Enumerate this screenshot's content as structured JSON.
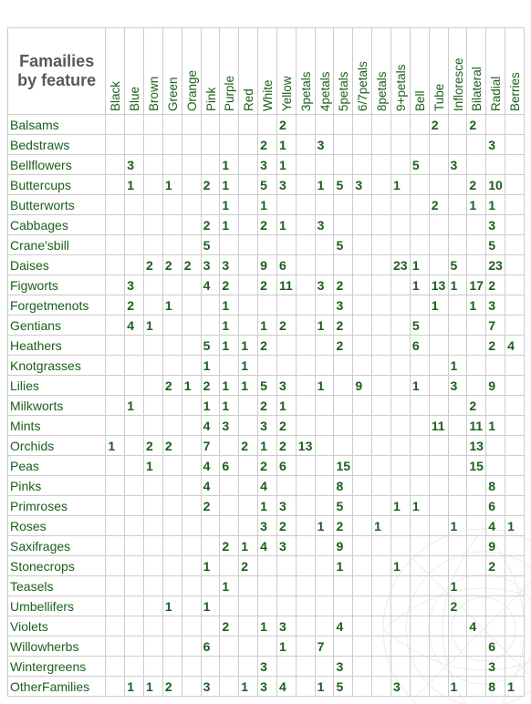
{
  "title": "Famailies by feature",
  "columns": [
    "Black",
    "Blue",
    "Brown",
    "Green",
    "Orange",
    "Pink",
    "Purple",
    "Red",
    "White",
    "Yellow",
    "3petals",
    "4petals",
    "5petals",
    "6/7petals",
    "8petals",
    "9+petals",
    "Bell",
    "Tube",
    "Infloresce",
    "Bilateral",
    "Radial",
    "Berries"
  ],
  "rows": [
    {
      "name": "Balsams",
      "values": [
        "",
        "",
        "",
        "",
        "",
        "",
        "",
        "",
        "",
        "2",
        "",
        "",
        "",
        "",
        "",
        "",
        "",
        "2",
        "",
        "2",
        "",
        ""
      ]
    },
    {
      "name": "Bedstraws",
      "values": [
        "",
        "",
        "",
        "",
        "",
        "",
        "",
        "",
        "2",
        "1",
        "",
        "3",
        "",
        "",
        "",
        "",
        "",
        "",
        "",
        "",
        "3",
        ""
      ]
    },
    {
      "name": "Bellflowers",
      "values": [
        "",
        "3",
        "",
        "",
        "",
        "",
        "1",
        "",
        "3",
        "1",
        "",
        "",
        "",
        "",
        "",
        "",
        "5",
        "",
        "3",
        "",
        "",
        ""
      ]
    },
    {
      "name": "Buttercups",
      "values": [
        "",
        "1",
        "",
        "1",
        "",
        "2",
        "1",
        "",
        "5",
        "3",
        "",
        "1",
        "5",
        "3",
        "",
        "1",
        "",
        "",
        "",
        "2",
        "10",
        ""
      ]
    },
    {
      "name": "Butterworts",
      "values": [
        "",
        "",
        "",
        "",
        "",
        "",
        "1",
        "",
        "1",
        "",
        "",
        "",
        "",
        "",
        "",
        "",
        "",
        "2",
        "",
        "1",
        "1",
        ""
      ]
    },
    {
      "name": "Cabbages",
      "values": [
        "",
        "",
        "",
        "",
        "",
        "2",
        "1",
        "",
        "2",
        "1",
        "",
        "3",
        "",
        "",
        "",
        "",
        "",
        "",
        "",
        "",
        "3",
        ""
      ]
    },
    {
      "name": "Crane'sbill",
      "values": [
        "",
        "",
        "",
        "",
        "",
        "5",
        "",
        "",
        "",
        "",
        "",
        "",
        "5",
        "",
        "",
        "",
        "",
        "",
        "",
        "",
        "5",
        ""
      ]
    },
    {
      "name": "Daises",
      "values": [
        "",
        "",
        "2",
        "2",
        "2",
        "3",
        "3",
        "",
        "9",
        "6",
        "",
        "",
        "",
        "",
        "",
        "23",
        "1",
        "",
        "5",
        "",
        "23",
        ""
      ]
    },
    {
      "name": "Figworts",
      "values": [
        "",
        "3",
        "",
        "",
        "",
        "4",
        "2",
        "",
        "2",
        "11",
        "",
        "3",
        "2",
        "",
        "",
        "",
        "1",
        "13",
        "1",
        "17",
        "2",
        ""
      ]
    },
    {
      "name": "Forgetmenots",
      "values": [
        "",
        "2",
        "",
        "1",
        "",
        "",
        "1",
        "",
        "",
        "",
        "",
        "",
        "3",
        "",
        "",
        "",
        "",
        "1",
        "",
        "1",
        "3",
        ""
      ]
    },
    {
      "name": "Gentians",
      "values": [
        "",
        "4",
        "1",
        "",
        "",
        "",
        "1",
        "",
        "1",
        "2",
        "",
        "1",
        "2",
        "",
        "",
        "",
        "5",
        "",
        "",
        "",
        "7",
        ""
      ]
    },
    {
      "name": "Heathers",
      "values": [
        "",
        "",
        "",
        "",
        "",
        "5",
        "1",
        "1",
        "2",
        "",
        "",
        "",
        "2",
        "",
        "",
        "",
        "6",
        "",
        "",
        "",
        "2",
        "4"
      ]
    },
    {
      "name": "Knotgrasses",
      "values": [
        "",
        "",
        "",
        "",
        "",
        "1",
        "",
        "1",
        "",
        "",
        "",
        "",
        "",
        "",
        "",
        "",
        "",
        "",
        "1",
        "",
        "",
        ""
      ]
    },
    {
      "name": "Lilies",
      "values": [
        "",
        "",
        "",
        "2",
        "1",
        "2",
        "1",
        "1",
        "5",
        "3",
        "",
        "1",
        "",
        "9",
        "",
        "",
        "1",
        "",
        "3",
        "",
        "9",
        ""
      ]
    },
    {
      "name": "Milkworts",
      "values": [
        "",
        "1",
        "",
        "",
        "",
        "1",
        "1",
        "",
        "2",
        "1",
        "",
        "",
        "",
        "",
        "",
        "",
        "",
        "",
        "",
        "2",
        "",
        ""
      ]
    },
    {
      "name": "Mints",
      "values": [
        "",
        "",
        "",
        "",
        "",
        "4",
        "3",
        "",
        "3",
        "2",
        "",
        "",
        "",
        "",
        "",
        "",
        "",
        "11",
        "",
        "11",
        "1",
        ""
      ]
    },
    {
      "name": "Orchids",
      "values": [
        "1",
        "",
        "2",
        "2",
        "",
        "7",
        "",
        "2",
        "1",
        "2",
        "13",
        "",
        "",
        "",
        "",
        "",
        "",
        "",
        "",
        "13",
        "",
        ""
      ]
    },
    {
      "name": "Peas",
      "values": [
        "",
        "",
        "1",
        "",
        "",
        "4",
        "6",
        "",
        "2",
        "6",
        "",
        "",
        "15",
        "",
        "",
        "",
        "",
        "",
        "",
        "15",
        "",
        ""
      ]
    },
    {
      "name": "Pinks",
      "values": [
        "",
        "",
        "",
        "",
        "",
        "4",
        "",
        "",
        "4",
        "",
        "",
        "",
        "8",
        "",
        "",
        "",
        "",
        "",
        "",
        "",
        "8",
        ""
      ]
    },
    {
      "name": "Primroses",
      "values": [
        "",
        "",
        "",
        "",
        "",
        "2",
        "",
        "",
        "1",
        "3",
        "",
        "",
        "5",
        "",
        "",
        "1",
        "1",
        "",
        "",
        "",
        "6",
        ""
      ]
    },
    {
      "name": "Roses",
      "values": [
        "",
        "",
        "",
        "",
        "",
        "",
        "",
        "",
        "3",
        "2",
        "",
        "1",
        "2",
        "",
        "1",
        "",
        "",
        "",
        "1",
        "",
        "4",
        "1"
      ]
    },
    {
      "name": "Saxifrages",
      "values": [
        "",
        "",
        "",
        "",
        "",
        "",
        "2",
        "1",
        "4",
        "3",
        "",
        "",
        "9",
        "",
        "",
        "",
        "",
        "",
        "",
        "",
        "9",
        ""
      ]
    },
    {
      "name": "Stonecrops",
      "values": [
        "",
        "",
        "",
        "",
        "",
        "1",
        "",
        "2",
        "",
        "",
        "",
        "",
        "1",
        "",
        "",
        "1",
        "",
        "",
        "",
        "",
        "2",
        ""
      ]
    },
    {
      "name": "Teasels",
      "values": [
        "",
        "",
        "",
        "",
        "",
        "",
        "1",
        "",
        "",
        "",
        "",
        "",
        "",
        "",
        "",
        "",
        "",
        "",
        "1",
        "",
        "",
        ""
      ]
    },
    {
      "name": "Umbellifers",
      "values": [
        "",
        "",
        "",
        "1",
        "",
        "1",
        "",
        "",
        "",
        "",
        "",
        "",
        "",
        "",
        "",
        "",
        "",
        "",
        "2",
        "",
        "",
        ""
      ]
    },
    {
      "name": "Violets",
      "values": [
        "",
        "",
        "",
        "",
        "",
        "",
        "2",
        "",
        "1",
        "3",
        "",
        "",
        "4",
        "",
        "",
        "",
        "",
        "",
        "",
        "4",
        "",
        ""
      ]
    },
    {
      "name": "Willowherbs",
      "values": [
        "",
        "",
        "",
        "",
        "",
        "6",
        "",
        "",
        "",
        "1",
        "",
        "7",
        "",
        "",
        "",
        "",
        "",
        "",
        "",
        "",
        "6",
        ""
      ]
    },
    {
      "name": "Wintergreens",
      "values": [
        "",
        "",
        "",
        "",
        "",
        "",
        "",
        "",
        "3",
        "",
        "",
        "",
        "3",
        "",
        "",
        "",
        "",
        "",
        "",
        "",
        "3",
        ""
      ]
    },
    {
      "name": "OtherFamilies",
      "values": [
        "",
        "1",
        "1",
        "2",
        "",
        "3",
        "",
        "1",
        "3",
        "4",
        "",
        "1",
        "5",
        "",
        "",
        "3",
        "",
        "",
        "1",
        "",
        "8",
        "1"
      ]
    }
  ]
}
